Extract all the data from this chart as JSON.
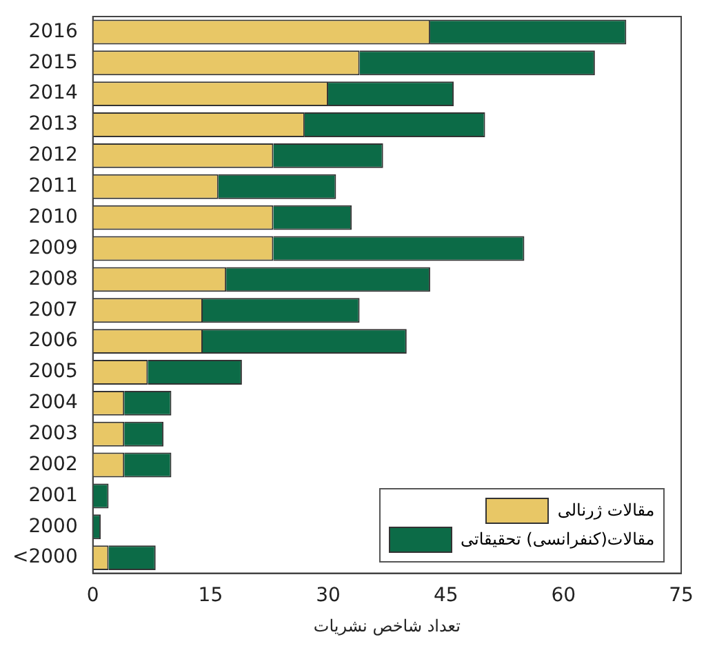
{
  "chart_data": {
    "type": "bar",
    "orientation": "horizontal",
    "stacked": true,
    "xlabel": "تعداد شاخص نشریات",
    "categories": [
      "2016",
      "2015",
      "2014",
      "2013",
      "2012",
      "2011",
      "2010",
      "2009",
      "2008",
      "2007",
      "2006",
      "2005",
      "2004",
      "2003",
      "2002",
      "2001",
      "2000",
      "<2000"
    ],
    "series": [
      {
        "name": "مقالات ژرنالی",
        "color": "#e8c766",
        "values": [
          43,
          34,
          30,
          27,
          23,
          16,
          23,
          23,
          17,
          14,
          14,
          7,
          4,
          4,
          4,
          0,
          0,
          2
        ]
      },
      {
        "name": "مقالات(کنفرانسی) تحقیقاتی",
        "color": "#0c6b47",
        "values": [
          25,
          30,
          16,
          23,
          14,
          15,
          10,
          32,
          26,
          20,
          26,
          12,
          6,
          5,
          6,
          2,
          1,
          6
        ]
      }
    ],
    "xlim": [
      0,
      75
    ],
    "xticks": [
      0,
      15,
      30,
      45,
      60,
      75
    ],
    "grid": false,
    "legend": "bottom right"
  }
}
